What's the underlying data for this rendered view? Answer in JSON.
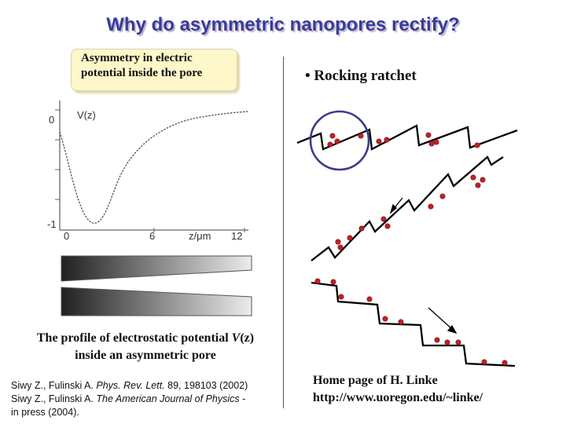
{
  "title": "Why do asymmetric nanopores rectify?",
  "note_box": {
    "line1": "Asymmetry in electric",
    "line2": "potential inside the pore"
  },
  "rocking_ratchet": "• Rocking ratchet",
  "potential_plot": {
    "ylabel": "V(z)",
    "y_tick_top": "0",
    "y_tick_bottom": "-1",
    "x_ticks": [
      "0",
      "6",
      "12"
    ],
    "xlabel": "z/μm"
  },
  "caption": {
    "line1_prefix": "The profile of electrostatic potential ",
    "line1_var": "V",
    "line1_paren": "(z)",
    "line2": "inside an asymmetric pore"
  },
  "references": {
    "ref1_authors": "Siwy Z., Fulinski A. ",
    "ref1_journal": "Phys. Rev. Lett.",
    "ref1_rest": " 89, 198103 (2002)",
    "ref2_authors": "Siwy Z., Fulinski A. ",
    "ref2_journal": "The American Journal of Physics",
    "ref2_rest": " -",
    "ref2_line2": "in press (2004)."
  },
  "homepage": {
    "line1": "Home page of H. Linke",
    "line2": "http://www.uoregon.edu/~linke/"
  },
  "colors": {
    "title": "#3a3a9a",
    "particle": "#c0202a",
    "circle": "#3c3c8c",
    "note_bg": "#fdf7c9"
  }
}
